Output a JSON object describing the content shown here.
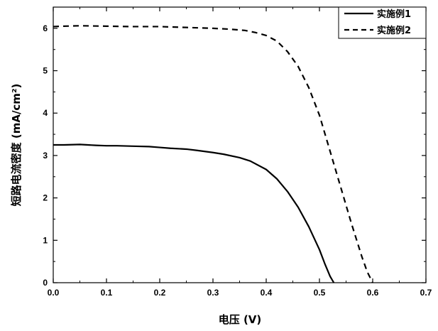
{
  "chart_data": {
    "type": "line",
    "title": "",
    "xlabel": "电压 (V)",
    "ylabel": "短路电流密度 (mA/cm²)",
    "xlim": [
      0,
      0.7
    ],
    "ylim": [
      0,
      6.5
    ],
    "xticks": [
      "0.0",
      "0.1",
      "0.2",
      "0.3",
      "0.4",
      "0.5",
      "0.6",
      "0.7"
    ],
    "yticks": [
      "0",
      "1",
      "2",
      "3",
      "4",
      "5",
      "6"
    ],
    "grid": false,
    "legend": "top-right",
    "series": [
      {
        "name": "实施例1",
        "style": "solid",
        "color": "#000000",
        "x": [
          0.0,
          0.02,
          0.05,
          0.08,
          0.1,
          0.12,
          0.15,
          0.18,
          0.2,
          0.22,
          0.25,
          0.27,
          0.3,
          0.32,
          0.35,
          0.37,
          0.4,
          0.42,
          0.44,
          0.46,
          0.48,
          0.5,
          0.51,
          0.52,
          0.527
        ],
        "y": [
          3.25,
          3.25,
          3.26,
          3.24,
          3.23,
          3.23,
          3.22,
          3.21,
          3.19,
          3.17,
          3.15,
          3.12,
          3.07,
          3.03,
          2.95,
          2.87,
          2.67,
          2.45,
          2.15,
          1.78,
          1.32,
          0.78,
          0.45,
          0.15,
          0.0
        ]
      },
      {
        "name": "实施例2",
        "style": "dashed",
        "color": "#000000",
        "x": [
          0.0,
          0.02,
          0.05,
          0.1,
          0.15,
          0.2,
          0.25,
          0.3,
          0.33,
          0.36,
          0.38,
          0.4,
          0.42,
          0.44,
          0.46,
          0.48,
          0.5,
          0.52,
          0.54,
          0.56,
          0.58,
          0.59,
          0.6
        ],
        "y": [
          6.04,
          6.05,
          6.06,
          6.05,
          6.04,
          6.04,
          6.02,
          6.0,
          5.98,
          5.95,
          5.9,
          5.83,
          5.7,
          5.45,
          5.1,
          4.6,
          3.95,
          3.1,
          2.25,
          1.4,
          0.6,
          0.25,
          0.0
        ]
      }
    ]
  }
}
